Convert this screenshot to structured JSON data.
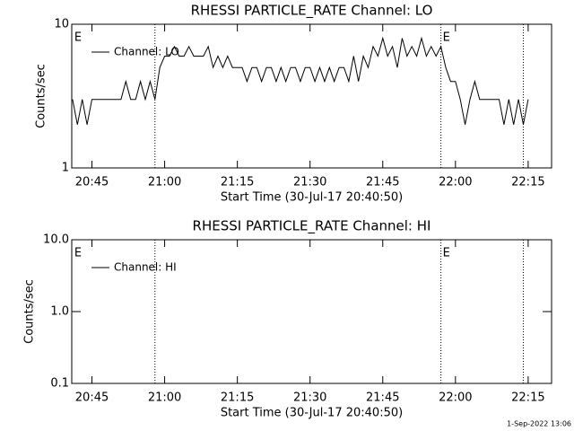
{
  "chart_data": [
    {
      "type": "line",
      "title": "RHESSI PARTICLE_RATE Channel: LO",
      "xlabel": "Start Time (30-Jul-17 20:40:50)",
      "ylabel": "Counts/sec",
      "log_y": true,
      "xlim": [
        "20:40:50",
        "22:19:50"
      ],
      "ylim": [
        1,
        10
      ],
      "yticks": [
        1,
        10
      ],
      "xticks": [
        "20:45",
        "21:00",
        "21:15",
        "21:30",
        "21:45",
        "22:00",
        "22:15"
      ],
      "legend": "upper left",
      "vlines": [
        "20:58",
        "21:57",
        "22:14"
      ],
      "annotations": [
        {
          "text": "E",
          "x": "20:41"
        },
        {
          "text": "E",
          "x": "21:57"
        }
      ],
      "x": [
        "20:41",
        "20:42",
        "20:43",
        "20:44",
        "20:45",
        "20:46",
        "20:47",
        "20:48",
        "20:49",
        "20:50",
        "20:51",
        "20:52",
        "20:53",
        "20:54",
        "20:55",
        "20:56",
        "20:57",
        "20:58",
        "20:59",
        "21:00",
        "21:01",
        "21:02",
        "21:03",
        "21:04",
        "21:05",
        "21:06",
        "21:07",
        "21:08",
        "21:09",
        "21:10",
        "21:11",
        "21:12",
        "21:13",
        "21:14",
        "21:15",
        "21:16",
        "21:17",
        "21:18",
        "21:19",
        "21:20",
        "21:21",
        "21:22",
        "21:23",
        "21:24",
        "21:25",
        "21:26",
        "21:27",
        "21:28",
        "21:29",
        "21:30",
        "21:31",
        "21:32",
        "21:33",
        "21:34",
        "21:35",
        "21:36",
        "21:37",
        "21:38",
        "21:39",
        "21:40",
        "21:41",
        "21:42",
        "21:43",
        "21:44",
        "21:45",
        "21:46",
        "21:47",
        "21:48",
        "21:49",
        "21:50",
        "21:51",
        "21:52",
        "21:53",
        "21:54",
        "21:55",
        "21:56",
        "21:57",
        "21:58",
        "21:59",
        "22:00",
        "22:01",
        "22:02",
        "22:03",
        "22:04",
        "22:05",
        "22:06",
        "22:07",
        "22:08",
        "22:09",
        "22:10",
        "22:11",
        "22:12",
        "22:13",
        "22:14",
        "22:15"
      ],
      "series": [
        {
          "name": "Channel: LO",
          "color": "#000000",
          "values": [
            3,
            2,
            3,
            2,
            3,
            3,
            3,
            3,
            3,
            3,
            3,
            4,
            3,
            3,
            4,
            3,
            4,
            3,
            5,
            6,
            6,
            7,
            6,
            6,
            7,
            6,
            6,
            6,
            7,
            5,
            6,
            5,
            6,
            5,
            5,
            5,
            4,
            5,
            5,
            4,
            5,
            5,
            4,
            5,
            4,
            5,
            5,
            4,
            5,
            5,
            4,
            5,
            4,
            5,
            4,
            5,
            5,
            4,
            6,
            4,
            6,
            5,
            7,
            6,
            8,
            6,
            7,
            5,
            8,
            6,
            7,
            6,
            8,
            6,
            7,
            6,
            7,
            5,
            4,
            4,
            3,
            2,
            3,
            4,
            3,
            3,
            3,
            3,
            3,
            2,
            3,
            2,
            3,
            2,
            3
          ]
        }
      ]
    },
    {
      "type": "line",
      "title": "RHESSI PARTICLE_RATE Channel: HI",
      "xlabel": "Start Time (30-Jul-17 20:40:50)",
      "ylabel": "Counts/sec",
      "log_y": true,
      "xlim": [
        "20:40:50",
        "22:19:50"
      ],
      "ylim": [
        0.1,
        10
      ],
      "yticks": [
        0.1,
        {
          "value": 1,
          "label": "1.0"
        },
        {
          "value": 10,
          "label": "10.0"
        }
      ],
      "xticks": [
        "20:45",
        "21:00",
        "21:15",
        "21:30",
        "21:45",
        "22:00",
        "22:15"
      ],
      "legend": "upper left",
      "vlines": [
        "20:58",
        "21:57",
        "22:14"
      ],
      "annotations": [
        {
          "text": "E",
          "x": "20:41"
        },
        {
          "text": "E",
          "x": "21:57"
        }
      ],
      "x": [],
      "series": [
        {
          "name": "Channel: HI",
          "color": "#000000",
          "values": []
        }
      ]
    }
  ],
  "footer": "1-Sep-2022 13:06"
}
